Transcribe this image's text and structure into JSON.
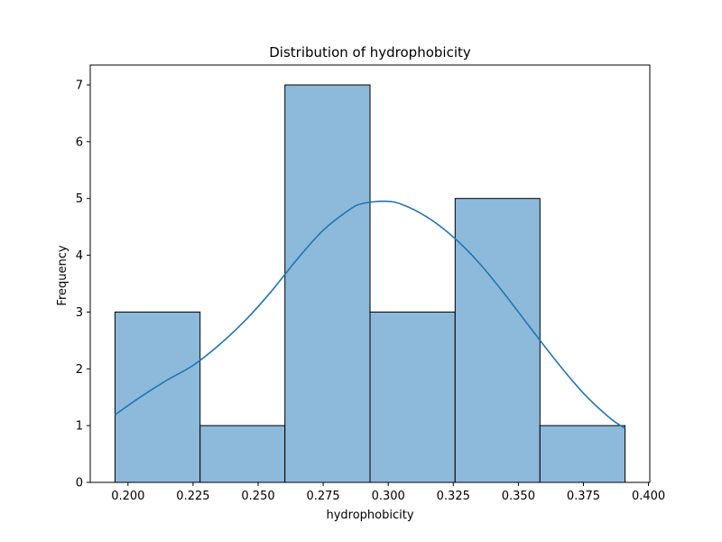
{
  "chart_data": {
    "type": "bar",
    "title": "Distribution of hydrophobicity",
    "xlabel": "hydrophobicity",
    "ylabel": "Frequency",
    "xlim": [
      0.1855,
      0.4005
    ],
    "ylim": [
      0,
      7.35
    ],
    "x_ticks": [
      0.2,
      0.225,
      0.25,
      0.275,
      0.3,
      0.325,
      0.35,
      0.375,
      0.4
    ],
    "x_tick_labels": [
      "0.200",
      "0.225",
      "0.250",
      "0.275",
      "0.300",
      "0.325",
      "0.350",
      "0.375",
      "0.400"
    ],
    "y_ticks": [
      0,
      1,
      2,
      3,
      4,
      5,
      6,
      7
    ],
    "y_tick_labels": [
      "0",
      "1",
      "2",
      "3",
      "4",
      "5",
      "6",
      "7"
    ],
    "grid": false,
    "bins": [
      {
        "x0": 0.195,
        "x1": 0.2277,
        "count": 3
      },
      {
        "x0": 0.2277,
        "x1": 0.2603,
        "count": 1
      },
      {
        "x0": 0.2603,
        "x1": 0.293,
        "count": 7
      },
      {
        "x0": 0.293,
        "x1": 0.3257,
        "count": 3
      },
      {
        "x0": 0.3257,
        "x1": 0.3583,
        "count": 5
      },
      {
        "x0": 0.3583,
        "x1": 0.391,
        "count": 1
      }
    ],
    "kde": {
      "x": [
        0.195,
        0.205,
        0.215,
        0.225,
        0.235,
        0.245,
        0.255,
        0.265,
        0.275,
        0.285,
        0.29,
        0.2985,
        0.305,
        0.315,
        0.325,
        0.335,
        0.345,
        0.355,
        0.365,
        0.375,
        0.385,
        0.391
      ],
      "y": [
        1.19,
        1.51,
        1.8,
        2.06,
        2.42,
        2.85,
        3.36,
        3.93,
        4.44,
        4.8,
        4.91,
        4.95,
        4.9,
        4.67,
        4.32,
        3.86,
        3.3,
        2.7,
        2.11,
        1.57,
        1.14,
        0.95
      ]
    },
    "colors": {
      "bar_fill": "#8db9da",
      "bar_edge": "#000000",
      "kde_line": "#1f77b4"
    }
  }
}
